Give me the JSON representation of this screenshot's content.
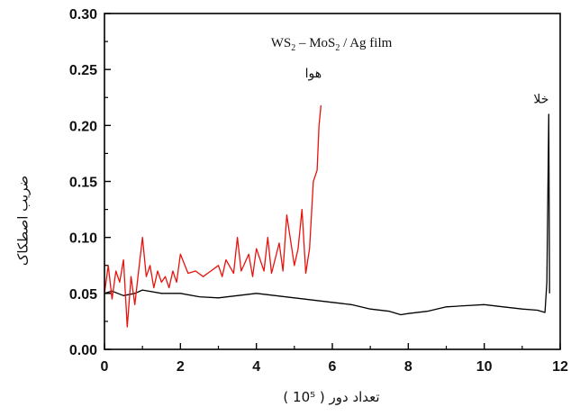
{
  "chart_data": {
    "type": "line",
    "title": "WS2 – MoS2 / Ag film",
    "title_parts": [
      "WS",
      "2",
      " – MoS",
      "2",
      " / Ag film"
    ],
    "xlabel": "( 10⁵ ) تعداد دور",
    "ylabel": "ضریب اصطکاک",
    "xlim": [
      0,
      12
    ],
    "ylim": [
      0.0,
      0.3
    ],
    "x_ticks": [
      0,
      2,
      4,
      6,
      8,
      10,
      12
    ],
    "y_ticks": [
      0.0,
      0.05,
      0.1,
      0.15,
      0.2,
      0.25,
      0.3
    ],
    "x_tick_labels": [
      "0",
      "2",
      "4",
      "6",
      "8",
      "10",
      "12"
    ],
    "y_tick_labels": [
      "0.00",
      "0.05",
      "0.10",
      "0.15",
      "0.20",
      "0.25",
      "0.30"
    ],
    "grid": false,
    "annotations": [
      {
        "text": "هوا",
        "x": 5.5,
        "y": 0.243
      },
      {
        "text": "خلا",
        "x": 11.5,
        "y": 0.22
      }
    ],
    "series": [
      {
        "color": "#e8120c",
        "x": [
          0,
          0.1,
          0.2,
          0.3,
          0.4,
          0.5,
          0.6,
          0.7,
          0.8,
          0.9,
          1.0,
          1.1,
          1.2,
          1.3,
          1.4,
          1.5,
          1.6,
          1.7,
          1.8,
          1.9,
          2.0,
          2.2,
          2.4,
          2.6,
          2.8,
          3.0,
          3.1,
          3.2,
          3.4,
          3.5,
          3.6,
          3.8,
          3.9,
          4.0,
          4.2,
          4.3,
          4.4,
          4.6,
          4.7,
          4.8,
          5.0,
          5.1,
          5.2,
          5.3,
          5.4,
          5.5,
          5.6,
          5.65,
          5.7
        ],
        "y": [
          0.05,
          0.075,
          0.045,
          0.07,
          0.06,
          0.08,
          0.02,
          0.065,
          0.04,
          0.07,
          0.1,
          0.065,
          0.075,
          0.055,
          0.07,
          0.06,
          0.065,
          0.055,
          0.07,
          0.06,
          0.085,
          0.068,
          0.07,
          0.065,
          0.07,
          0.075,
          0.065,
          0.08,
          0.068,
          0.1,
          0.07,
          0.085,
          0.065,
          0.09,
          0.07,
          0.1,
          0.068,
          0.095,
          0.07,
          0.12,
          0.075,
          0.09,
          0.125,
          0.068,
          0.09,
          0.15,
          0.16,
          0.2,
          0.218
        ]
      },
      {
        "color": "#000000",
        "x": [
          0,
          0.2,
          0.5,
          0.8,
          1.0,
          1.5,
          2.0,
          2.5,
          3.0,
          3.5,
          4.0,
          4.5,
          5.0,
          5.5,
          6.0,
          6.5,
          7.0,
          7.5,
          7.8,
          8.0,
          8.5,
          9.0,
          9.5,
          10.0,
          10.5,
          11.0,
          11.4,
          11.6,
          11.65,
          11.7,
          11.72
        ],
        "y": [
          0.05,
          0.052,
          0.048,
          0.05,
          0.053,
          0.05,
          0.05,
          0.047,
          0.046,
          0.048,
          0.05,
          0.048,
          0.046,
          0.044,
          0.042,
          0.04,
          0.036,
          0.034,
          0.031,
          0.032,
          0.034,
          0.038,
          0.039,
          0.04,
          0.038,
          0.036,
          0.035,
          0.033,
          0.06,
          0.21,
          0.05
        ]
      }
    ]
  }
}
